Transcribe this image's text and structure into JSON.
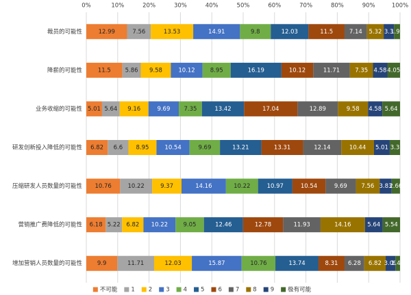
{
  "chart_data": {
    "type": "stacked-bar-horizontal",
    "categories": [
      "裁员的可能性",
      "降薪的可能性",
      "业务收缩的可能性",
      "研发创新投入降低的可能性",
      "压缩研发人员数量的可能性",
      "营销推广费降低的可能性",
      "增加营销人员数量的可能性"
    ],
    "series": [
      {
        "name": "不可能",
        "color": "#ed7d31",
        "values": [
          12.99,
          11.5,
          5.01,
          6.82,
          10.76,
          6.18,
          9.9
        ]
      },
      {
        "name": "1",
        "color": "#a5a5a5",
        "values": [
          7.56,
          5.86,
          5.64,
          6.6,
          10.22,
          5.22,
          11.71
        ]
      },
      {
        "name": "2",
        "color": "#ffc000",
        "values": [
          13.53,
          9.58,
          9.16,
          8.95,
          9.37,
          6.82,
          12.03
        ]
      },
      {
        "name": "3",
        "color": "#4472c4",
        "values": [
          14.91,
          10.12,
          9.69,
          10.54,
          14.16,
          10.22,
          15.87
        ]
      },
      {
        "name": "4",
        "color": "#70ad47",
        "values": [
          9.8,
          8.95,
          7.35,
          9.69,
          10.22,
          9.05,
          10.76
        ]
      },
      {
        "name": "5",
        "color": "#255e91",
        "values": [
          12.03,
          16.19,
          13.42,
          13.21,
          10.97,
          12.46,
          13.74
        ]
      },
      {
        "name": "6",
        "color": "#9e480e",
        "values": [
          11.5,
          10.12,
          17.04,
          13.31,
          10.54,
          12.78,
          8.31
        ]
      },
      {
        "name": "7",
        "color": "#636363",
        "values": [
          7.14,
          11.71,
          12.89,
          12.14,
          9.69,
          11.93,
          6.28
        ]
      },
      {
        "name": "8",
        "color": "#997300",
        "values": [
          5.32,
          7.35,
          9.58,
          10.44,
          7.56,
          14.16,
          6.82
        ]
      },
      {
        "name": "9",
        "color": "#264478",
        "values": [
          3.3,
          4.58,
          4.58,
          5.01,
          3.83,
          5.64,
          3.09
        ]
      },
      {
        "name": "极有可能",
        "color": "#43682b",
        "values": [
          1.92,
          4.05,
          5.64,
          3.3,
          2.66,
          5.54,
          1.49
        ]
      }
    ],
    "xlim": [
      0,
      100
    ],
    "xticks": [
      {
        "value": 0,
        "label": "0%"
      },
      {
        "value": 10,
        "label": "10%"
      },
      {
        "value": 20,
        "label": "20%"
      },
      {
        "value": 30,
        "label": "30%"
      },
      {
        "value": 40,
        "label": "40%"
      },
      {
        "value": 50,
        "label": "50%"
      },
      {
        "value": 60,
        "label": "60%"
      },
      {
        "value": 70,
        "label": "70%"
      },
      {
        "value": 80,
        "label": "80%"
      },
      {
        "value": 90,
        "label": "90%"
      },
      {
        "value": 100,
        "label": "100%"
      }
    ],
    "grid": true,
    "legend": "bottom"
  }
}
